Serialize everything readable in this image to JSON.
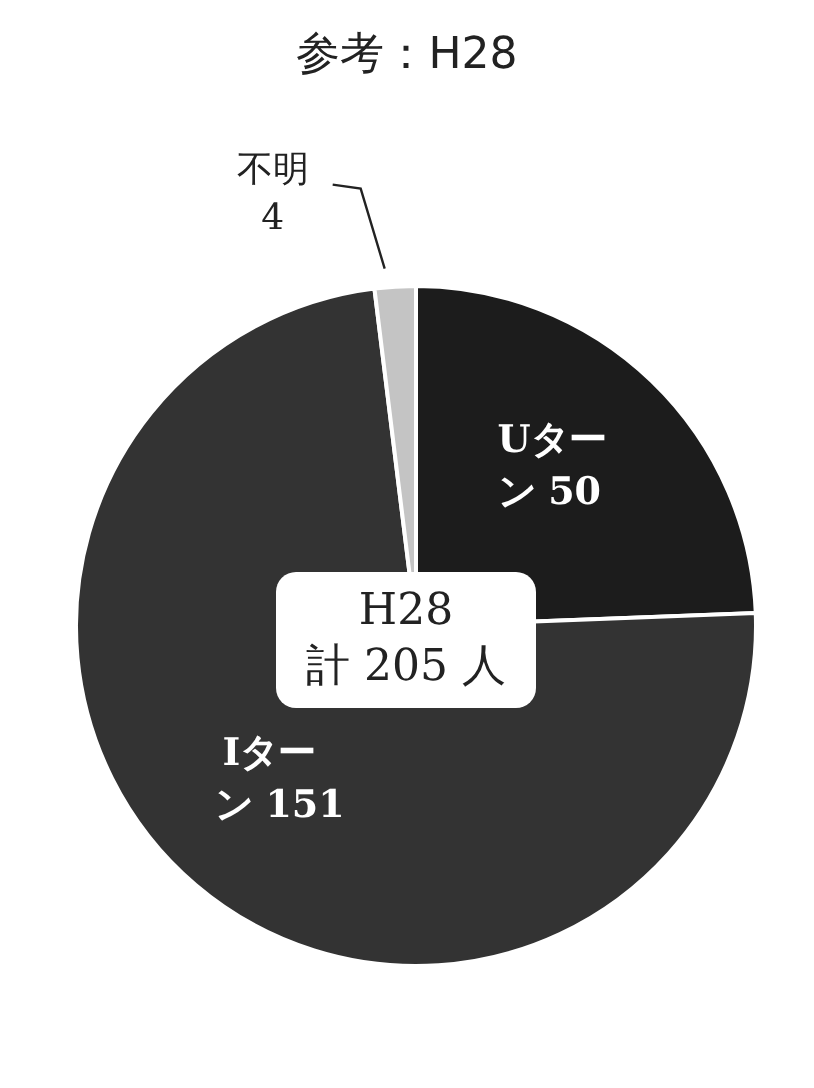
{
  "chart_data": {
    "type": "pie",
    "title": "参考：H28",
    "categories": [
      "Uターン",
      "Iターン",
      "不明"
    ],
    "values": [
      50,
      151,
      4
    ],
    "colors": [
      "#1c1c1c",
      "#333333",
      "#c4c4c4"
    ],
    "data_labels": true,
    "annotations": [
      "H28\n計 205 人"
    ]
  }
}
